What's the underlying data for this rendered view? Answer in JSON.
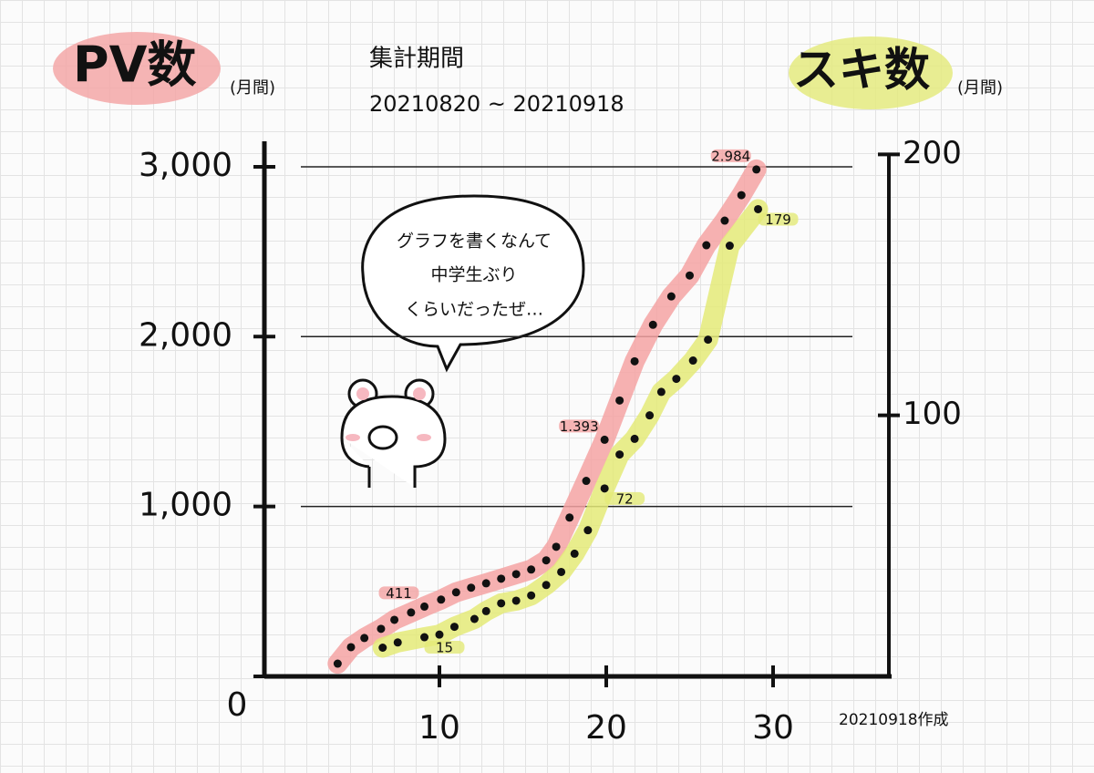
{
  "chart_data": {
    "type": "line",
    "period_title": "集計期間",
    "period": "20210820 ~ 20210918",
    "note": "20210918作成",
    "speech": [
      "グラフを書くなんて",
      "中学生ぶり",
      "くらいだったぜ…"
    ],
    "unit_left": "(月間)",
    "unit_right": "(月間)",
    "xlim": [
      0,
      37
    ],
    "xticks": [
      10,
      20,
      30
    ],
    "ylim": [
      0,
      3150
    ],
    "yticks": [
      0,
      {
        "value": 1000,
        "label": "1,000"
      },
      {
        "value": 2000,
        "label": "2,000"
      },
      {
        "value": 3000,
        "label": "3,000"
      }
    ],
    "y2lim": [
      0,
      205
    ],
    "y2ticks": [
      100,
      200
    ],
    "grid": true,
    "series": [
      {
        "name": "PV数",
        "color": "#f4a3a3",
        "axis": "y",
        "x": [
          3.9,
          4.7,
          5.5,
          6.5,
          7.3,
          8.3,
          9.1,
          10.1,
          11,
          11.9,
          12.8,
          13.7,
          14.6,
          15.5,
          16.4,
          17,
          17.8,
          18.8,
          19.9,
          20.8,
          21.7,
          22.8,
          23.9,
          25,
          26,
          27.1,
          28.1,
          29
        ],
        "values": [
          75,
          172,
          226,
          280,
          333,
          376,
          411,
          452,
          495,
          522,
          548,
          575,
          602,
          629,
          683,
          763,
          935,
          1151,
          1393,
          1624,
          1855,
          2070,
          2237,
          2360,
          2538,
          2683,
          2833,
          2984
        ],
        "value_labels": [
          null,
          null,
          null,
          null,
          null,
          null,
          "411",
          null,
          null,
          null,
          null,
          null,
          null,
          null,
          null,
          null,
          null,
          null,
          "1.393",
          null,
          null,
          null,
          null,
          null,
          null,
          null,
          null,
          "2.984"
        ]
      },
      {
        "name": "スキ数",
        "color": "#e4ea78",
        "axis": "y2",
        "x": [
          6.6,
          7.5,
          9.1,
          10,
          10.9,
          12.1,
          12.8,
          13.7,
          14.6,
          15.5,
          16.4,
          17.3,
          18.1,
          18.9,
          19.9,
          20.8,
          21.7,
          22.6,
          23.3,
          24.2,
          25.2,
          26.1,
          27.4,
          29.1
        ],
        "values": [
          11,
          13,
          15,
          16,
          19,
          22,
          25,
          28,
          29,
          31,
          35,
          40,
          47,
          56,
          72,
          85,
          91,
          100,
          109,
          114,
          121,
          129,
          165,
          179
        ],
        "value_labels": [
          null,
          null,
          "15",
          null,
          null,
          null,
          null,
          null,
          null,
          null,
          null,
          null,
          null,
          null,
          "72",
          null,
          null,
          null,
          null,
          null,
          null,
          null,
          null,
          "179"
        ]
      }
    ]
  }
}
